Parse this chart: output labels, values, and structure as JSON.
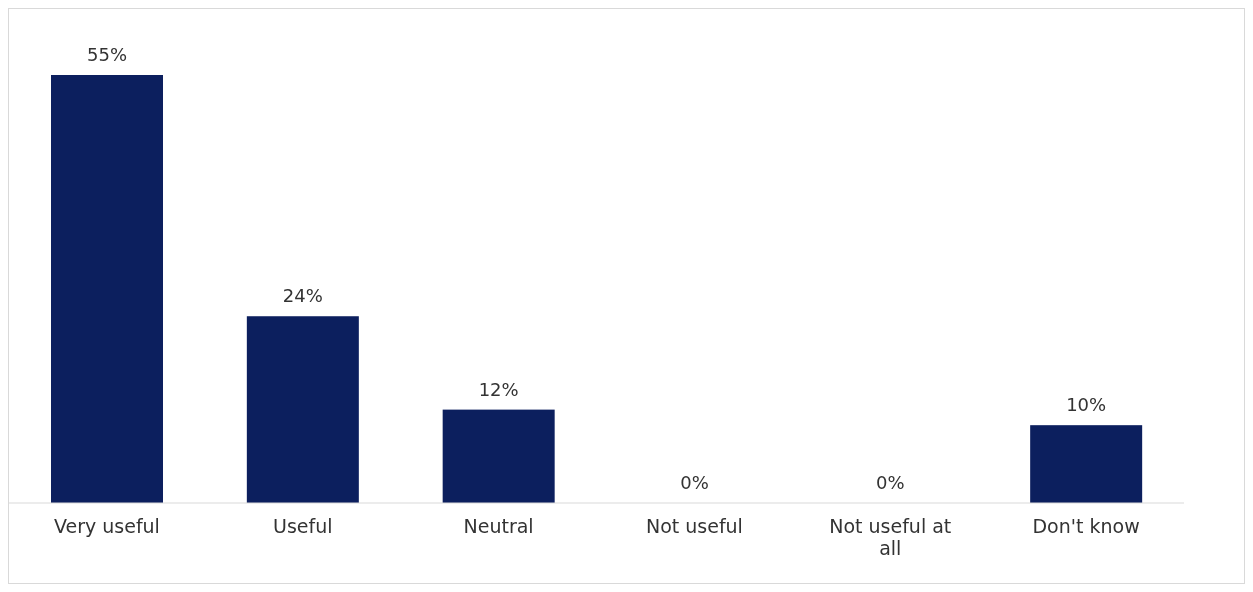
{
  "chart_data": {
    "type": "bar",
    "categories": [
      "Very useful",
      "Useful",
      "Neutral",
      "Not useful",
      "Not useful at all",
      "Don't know"
    ],
    "values": [
      55,
      24,
      12,
      0,
      0,
      10
    ],
    "color": "#0c1f5e",
    "value_labels": [
      "55%",
      "24%",
      "12%",
      "0%",
      "0%",
      "10%"
    ],
    "grid": false,
    "legend": false
  }
}
